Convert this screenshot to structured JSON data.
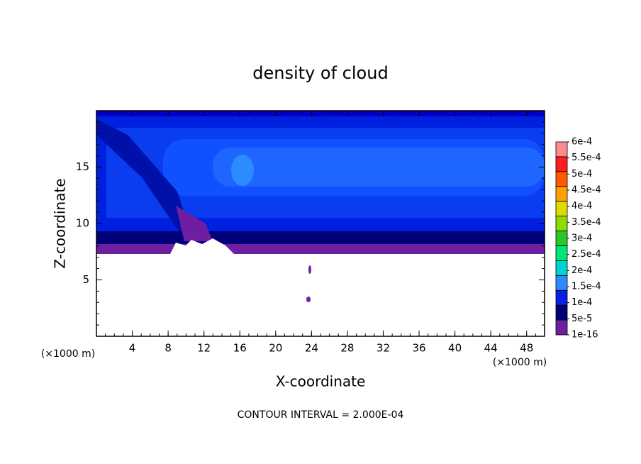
{
  "chart_data": {
    "type": "contour",
    "title": "density of cloud",
    "x_label": "X-coordinate",
    "y_label": "Z-coordinate",
    "x_unit_label": "(×1000 m)",
    "xlim": [
      0,
      50
    ],
    "xticks": [
      4,
      8,
      12,
      16,
      20,
      24,
      28,
      32,
      36,
      40,
      44,
      48
    ],
    "ylim": [
      0,
      20
    ],
    "yticks": [
      5,
      10,
      15
    ],
    "colorbar": {
      "levels": [
        1e-16,
        {
          "value": 5e-05,
          "label": "5e-5"
        },
        {
          "value": 0.0001,
          "label": "1e-4"
        },
        {
          "value": 0.00015,
          "label": "1.5e-4"
        },
        {
          "value": 0.0002,
          "label": "2e-4"
        },
        {
          "value": 0.00025,
          "label": "2.5e-4"
        },
        {
          "value": 0.0003,
          "label": "3e-4"
        },
        {
          "value": 0.00035,
          "label": "3.5e-4"
        },
        {
          "value": 0.0004,
          "label": "4e-4"
        },
        {
          "value": 0.00045,
          "label": "4.5e-4"
        },
        {
          "value": 0.0005,
          "label": "5e-4"
        },
        {
          "value": 0.00055,
          "label": "5.5e-4"
        },
        {
          "value": 0.0006,
          "label": "6e-4"
        }
      ],
      "colors": [
        "#6e1ea0",
        "#00007a",
        "#0a1ee8",
        "#2c8cff",
        "#00d2d2",
        "#00e678",
        "#28c828",
        "#8cdc00",
        "#dcdc00",
        "#ffa000",
        "#ff5a00",
        "#ff1e1e",
        "#ff8c8c"
      ]
    },
    "footnote": "CONTOUR INTERVAL = 2.000E-04"
  }
}
